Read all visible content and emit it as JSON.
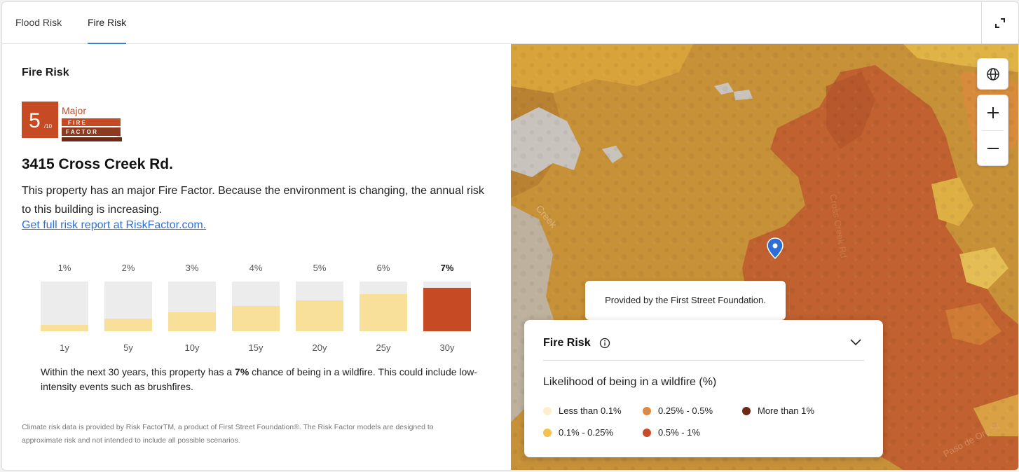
{
  "tabs": [
    {
      "label": "Flood Risk"
    },
    {
      "label": "Fire Risk"
    }
  ],
  "panel": {
    "title": "Fire Risk",
    "badge": {
      "score": "5",
      "scale": "/10",
      "level": "Major",
      "brand_line1": "F I R E",
      "brand_line2": "F A C T O R",
      "trademark": "TM"
    },
    "address": "3415 Cross Creek Rd.",
    "description": "This property has an major Fire Factor. Because the environment is changing, the annual risk to this building is increasing.",
    "link_text": "Get full risk report at RiskFactor.com.",
    "summary_pre": "Within the next 30 years, this property has a ",
    "summary_bold": "7%",
    "summary_post": " chance of being in a wildfire. This could include low-intensity events such as brushfires.",
    "footnote": "Climate risk data is provided by Risk FactorTM, a product of First Street Foundation®. The Risk Factor models are designed to approximate risk and not intended to include all possible scenarios."
  },
  "chart_data": {
    "type": "bar",
    "categories": [
      "1y",
      "5y",
      "10y",
      "15y",
      "20y",
      "25y",
      "30y"
    ],
    "value_labels": [
      "1%",
      "2%",
      "3%",
      "4%",
      "5%",
      "6%",
      "7%"
    ],
    "values": [
      1,
      2,
      3,
      4,
      5,
      6,
      7
    ],
    "ylim": [
      0,
      8
    ],
    "highlight_index": 6,
    "colors": {
      "track": "#ececec",
      "fill": "#f9e09a",
      "highlight": "#c64b24"
    }
  },
  "map": {
    "tooltip": "Provided by the First Street Foundation.",
    "street_labels": [
      "Creek",
      "Cross Creek Rd",
      "Paso de Oro St"
    ],
    "legend": {
      "title": "Fire Risk",
      "subtitle": "Likelihood of being in a wildfire (%)",
      "items": [
        {
          "label": "Less than 0.1%",
          "color": "#fbefcf"
        },
        {
          "label": "0.1% - 0.25%",
          "color": "#f2c14f"
        },
        {
          "label": "0.25% - 0.5%",
          "color": "#de8a43"
        },
        {
          "label": "0.5% - 1%",
          "color": "#c74c27"
        },
        {
          "label": "More than 1%",
          "color": "#6e2a16"
        }
      ]
    }
  },
  "icons": {
    "expand": "expand-icon",
    "globe": "globe-icon",
    "zoom_in": "plus-icon",
    "zoom_out": "minus-icon",
    "info": "info-icon",
    "chevron": "chevron-down-icon",
    "pin": "location-pin-icon"
  }
}
